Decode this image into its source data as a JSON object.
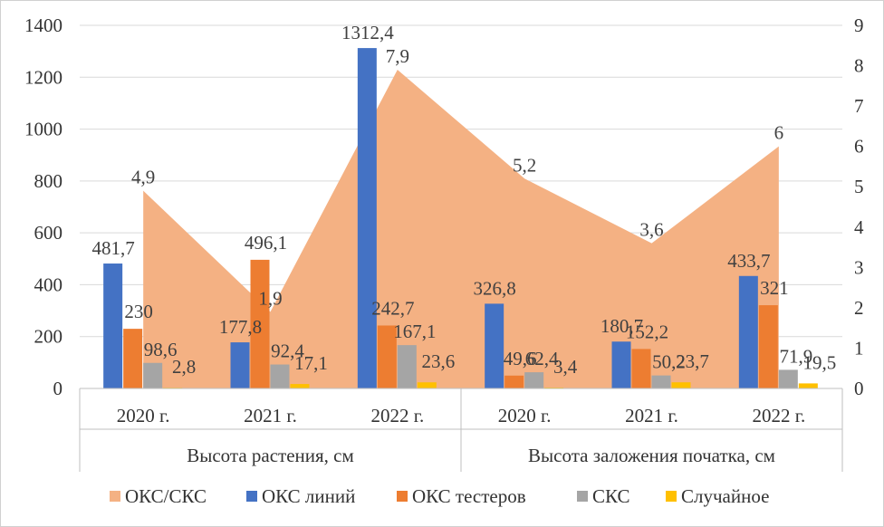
{
  "chart_data": {
    "type": "bar",
    "groups": [
      "Высота растения, см",
      "Высота заложения початка, см"
    ],
    "categories": [
      "2020 г.",
      "2021 г.",
      "2022 г.",
      "2020 г.",
      "2021 г.",
      "2022 г."
    ],
    "left_axis": {
      "ylim": [
        0,
        1400
      ],
      "ticks": [
        "0",
        "200",
        "400",
        "600",
        "800",
        "1000",
        "1200",
        "1400"
      ]
    },
    "right_axis": {
      "ylim": [
        0,
        9
      ],
      "ticks": [
        "0",
        "1",
        "2",
        "3",
        "4",
        "5",
        "6",
        "7",
        "8",
        "9"
      ]
    },
    "area_series": {
      "name": "ОКС/СКС",
      "color": "#F4B183",
      "axis": "right",
      "values": [
        4.9,
        1.9,
        7.9,
        5.2,
        3.6,
        6
      ],
      "labels": [
        "4,9",
        "1,9",
        "7,9",
        "5,2",
        "3,6",
        "6"
      ]
    },
    "series": [
      {
        "name": "ОКС линий",
        "color": "#4472C4",
        "axis": "left",
        "values": [
          481.7,
          177.8,
          1312.4,
          326.8,
          180.7,
          433.7
        ],
        "labels": [
          "481,7",
          "177,8",
          "1312,4",
          "326,8",
          "180,7",
          "433,7"
        ]
      },
      {
        "name": "ОКС тестеров",
        "color": "#ED7D31",
        "axis": "left",
        "values": [
          230,
          496.1,
          242.7,
          49.6,
          152.2,
          321
        ],
        "labels": [
          "230",
          "496,1",
          "242,7",
          "49,6",
          "152,2",
          "321"
        ]
      },
      {
        "name": "СКС",
        "color": "#A5A5A5",
        "axis": "left",
        "values": [
          98.6,
          92.4,
          167.1,
          62.4,
          50.2,
          71.9
        ],
        "labels": [
          "98,6",
          "92,4",
          "167,1",
          "62,4",
          "50,2",
          "71,9"
        ]
      },
      {
        "name": "Случайное",
        "color": "#FFC000",
        "axis": "left",
        "values": [
          2.8,
          17.1,
          23.6,
          3.4,
          23.7,
          19.5
        ],
        "labels": [
          "2,8",
          "17,1",
          "23,6",
          "3,4",
          "23,7",
          "19,5"
        ]
      }
    ],
    "legend": [
      "ОКС/СКС",
      "ОКС линий",
      "ОКС тестеров",
      "СКС",
      "Случайное"
    ],
    "legend_position": "bottom",
    "grid": true
  }
}
